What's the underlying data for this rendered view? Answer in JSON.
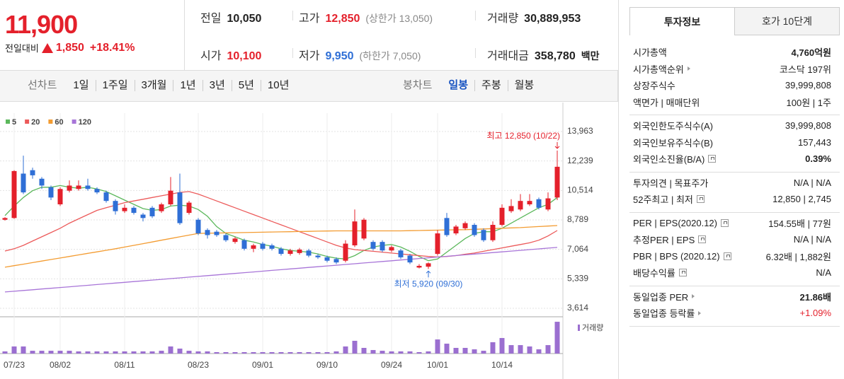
{
  "quote": {
    "price": "11,900",
    "change_label": "전일대비",
    "change": "1,850",
    "change_rate": "+18.41%",
    "stats": [
      {
        "label": "전일",
        "value": "10,050"
      },
      {
        "label": "고가",
        "value": "12,850",
        "note": "(상한가 13,050)"
      },
      {
        "label": "거래량",
        "value": "30,889,953"
      },
      {
        "label": "시가",
        "value": "10,100"
      },
      {
        "label": "저가",
        "value": "9,950",
        "note": "(하한가 7,050)"
      },
      {
        "label": "거래대금",
        "value": "358,780",
        "unit": "백만"
      }
    ]
  },
  "nav": {
    "line_chart": {
      "label": "선차트",
      "periods": [
        "1일",
        "1주일",
        "3개월",
        "1년",
        "3년",
        "5년",
        "10년"
      ]
    },
    "candle_chart": {
      "label": "봉차트",
      "periods": [
        "일봉",
        "주봉",
        "월봉"
      ]
    }
  },
  "info": {
    "tabs": [
      "투자정보",
      "호가 10단계"
    ],
    "groups": [
      [
        {
          "label": "시가총액",
          "value": "4,760억원",
          "bold": true
        },
        {
          "label": "시가총액순위",
          "value": "코스닥 197위",
          "link": true
        },
        {
          "label": "상장주식수",
          "value": "39,999,808"
        },
        {
          "label": "액면가 | 매매단위",
          "value": "100원 | 1주"
        }
      ],
      [
        {
          "label": "외국인한도주식수(A)",
          "value": "39,999,808"
        },
        {
          "label": "외국인보유주식수(B)",
          "value": "157,443"
        },
        {
          "label": "외국인소진율(B/A)",
          "value": "0.39%",
          "help": true,
          "bold": true
        }
      ],
      [
        {
          "label": "투자의견 | 목표주가",
          "value": "N/A | N/A"
        },
        {
          "label": "52주최고 | 최저",
          "value": "12,850 | 2,745",
          "help": true
        }
      ],
      [
        {
          "label": "PER | EPS(2020.12)",
          "value": "154.55배 | 77원",
          "help": true
        },
        {
          "label": "추정PER | EPS",
          "value": "N/A | N/A",
          "help": true
        },
        {
          "label": "PBR | BPS (2020.12)",
          "value": "6.32배 | 1,882원",
          "help": true
        },
        {
          "label": "배당수익률",
          "value": "N/A",
          "help": true
        }
      ],
      [
        {
          "label": "동일업종 PER",
          "value": "21.86배",
          "link": true,
          "bold": true
        },
        {
          "label": "동일업종 등락률",
          "value": "+1.09%",
          "link": true,
          "color": "#e4202b"
        }
      ]
    ]
  },
  "chart_data": {
    "type": "candlestick",
    "categories": [
      null,
      "07/23",
      null,
      null,
      null,
      null,
      "08/02",
      null,
      null,
      null,
      null,
      null,
      null,
      "08/11",
      null,
      null,
      null,
      null,
      null,
      null,
      null,
      "08/23",
      null,
      null,
      null,
      null,
      null,
      null,
      "09/01",
      null,
      null,
      null,
      null,
      null,
      null,
      "09/10",
      null,
      null,
      null,
      null,
      null,
      null,
      "09/24",
      null,
      null,
      null,
      null,
      "10/01",
      null,
      null,
      null,
      null,
      null,
      null,
      "10/14",
      null,
      null,
      null,
      null,
      null,
      null
    ],
    "open": [
      8800,
      8900,
      11500,
      11700,
      11200,
      10700,
      9700,
      10500,
      10600,
      10800,
      10600,
      10400,
      9900,
      9300,
      9500,
      9100,
      9500,
      9300,
      9700,
      10400,
      9200,
      8800,
      8200,
      8100,
      7900,
      7500,
      7600,
      7100,
      7400,
      7300,
      7100,
      6800,
      6850,
      7000,
      6700,
      6600,
      6500,
      6400,
      7300,
      7700,
      7500,
      7500,
      7000,
      7000,
      6700,
      6000,
      6050,
      6800,
      8900,
      8000,
      8300,
      8500,
      8200,
      7600,
      8500,
      9300,
      9400,
      9700,
      10000,
      9400,
      10100
    ],
    "high": [
      8950,
      11700,
      12550,
      11850,
      11300,
      10800,
      10700,
      11100,
      11100,
      11200,
      10700,
      10500,
      10000,
      9700,
      9600,
      9200,
      9600,
      9800,
      11300,
      11500,
      9900,
      8900,
      8300,
      8200,
      8000,
      7800,
      7700,
      7400,
      7500,
      7400,
      7200,
      7100,
      7150,
      7100,
      6800,
      6700,
      6600,
      7600,
      9400,
      8900,
      7600,
      7600,
      7300,
      7100,
      6800,
      6200,
      6300,
      8200,
      9200,
      8500,
      8700,
      8600,
      8300,
      8700,
      9700,
      10000,
      10300,
      10300,
      10100,
      10400,
      12850
    ],
    "low": [
      8750,
      8850,
      10300,
      11200,
      10600,
      9950,
      9600,
      10400,
      10500,
      10500,
      10300,
      9800,
      9100,
      9200,
      9100,
      8700,
      8900,
      9200,
      9600,
      8500,
      9100,
      7900,
      7700,
      7800,
      7500,
      7400,
      7000,
      6900,
      7000,
      7000,
      6700,
      6700,
      6750,
      6600,
      6500,
      6300,
      6200,
      6300,
      7200,
      7600,
      7000,
      6900,
      6900,
      6500,
      6200,
      5950,
      5920,
      6700,
      7800,
      7900,
      8200,
      7800,
      7500,
      7500,
      8400,
      9200,
      9300,
      9600,
      9400,
      9300,
      9950
    ],
    "close": [
      8900,
      11650,
      10400,
      11400,
      10800,
      10100,
      10600,
      10800,
      10800,
      10600,
      10400,
      9900,
      9300,
      9500,
      9200,
      8900,
      9000,
      9700,
      10500,
      8600,
      9800,
      8000,
      7900,
      7900,
      7600,
      7700,
      7100,
      7300,
      7100,
      7100,
      6800,
      7000,
      7050,
      6700,
      6600,
      6400,
      6300,
      7400,
      8700,
      8800,
      7100,
      7000,
      7200,
      6600,
      6300,
      6100,
      6250,
      8000,
      7900,
      8400,
      8600,
      7900,
      7600,
      8500,
      9500,
      9600,
      9900,
      9900,
      9500,
      10050,
      11900
    ],
    "up_color": "#e4202b",
    "down_color": "#2f6fd6",
    "series": [
      {
        "name": "5",
        "color": "#5cb85c",
        "values": [
          9040,
          9600,
          10100,
          10500,
          10700,
          10700,
          10800,
          10700,
          10650,
          10700,
          10600,
          10450,
          10200,
          9950,
          9700,
          9450,
          9350,
          9400,
          9600,
          9650,
          9600,
          9400,
          9000,
          8400,
          8000,
          7800,
          7600,
          7500,
          7350,
          7250,
          7100,
          7000,
          6950,
          6900,
          6800,
          6650,
          6550,
          6500,
          6700,
          7000,
          7200,
          7300,
          7350,
          7200,
          6950,
          6650,
          6400,
          6500,
          6900,
          7300,
          7700,
          8000,
          8100,
          8100,
          8300,
          8600,
          8900,
          9200,
          9500,
          9700,
          10100
        ]
      },
      {
        "name": "20",
        "color": "#ec5a5a",
        "values": [
          6970,
          7100,
          7300,
          7550,
          7800,
          8050,
          8300,
          8600,
          8850,
          9100,
          9350,
          9500,
          9650,
          9800,
          9900,
          10000,
          10100,
          10200,
          10300,
          10400,
          10450,
          10300,
          10100,
          9900,
          9700,
          9500,
          9300,
          9100,
          8900,
          8700,
          8500,
          8300,
          8100,
          7900,
          7700,
          7500,
          7300,
          7150,
          7050,
          7000,
          6950,
          6900,
          6850,
          6800,
          6750,
          6700,
          6650,
          6620,
          6650,
          6700,
          6780,
          6850,
          6950,
          7050,
          7150,
          7250,
          7350,
          7450,
          7600,
          7850,
          8170
        ]
      },
      {
        "name": "60",
        "color": "#f39c32",
        "values": [
          6020,
          6110,
          6200,
          6290,
          6380,
          6470,
          6560,
          6650,
          6740,
          6830,
          6920,
          7010,
          7100,
          7200,
          7300,
          7400,
          7500,
          7600,
          7700,
          7800,
          7900,
          8000,
          8010,
          8020,
          8030,
          8040,
          8050,
          8060,
          8070,
          8080,
          8090,
          8100,
          8110,
          8120,
          8130,
          8140,
          8150,
          8150,
          8150,
          8150,
          8150,
          8150,
          8150,
          8150,
          8160,
          8170,
          8180,
          8190,
          8200,
          8210,
          8220,
          8240,
          8260,
          8280,
          8300,
          8320,
          8340,
          8370,
          8400,
          8430,
          8460
        ]
      },
      {
        "name": "120",
        "color": "#a875d8",
        "values": [
          4570,
          4614,
          4657,
          4701,
          4744,
          4788,
          4831,
          4875,
          4918,
          4962,
          5005,
          5049,
          5092,
          5136,
          5179,
          5223,
          5266,
          5310,
          5353,
          5397,
          5440,
          5484,
          5527,
          5571,
          5614,
          5658,
          5701,
          5745,
          5788,
          5832,
          5875,
          5919,
          5962,
          6006,
          6049,
          6093,
          6136,
          6180,
          6223,
          6267,
          6310,
          6354,
          6397,
          6441,
          6484,
          6528,
          6571,
          6615,
          6658,
          6702,
          6745,
          6789,
          6832,
          6876,
          6919,
          6963,
          7006,
          7050,
          7093,
          7137,
          7180
        ]
      }
    ],
    "ylim": [
      3160,
      15040
    ],
    "yticks": [
      {
        "value": 13963,
        "label": "13,963"
      },
      {
        "value": 12239,
        "label": "12,239"
      },
      {
        "value": 10514,
        "label": "10,514"
      },
      {
        "value": 8789,
        "label": "8,789"
      },
      {
        "value": 7064,
        "label": "7,064"
      },
      {
        "value": 5339,
        "label": "5,339"
      },
      {
        "value": 3614,
        "label": "3,614"
      }
    ],
    "grid": true,
    "volume": {
      "name": "거래량",
      "color": "#9b6fd0",
      "ylim": [
        0,
        33000000
      ],
      "values": [
        2100000,
        6900000,
        6900000,
        2700000,
        2700000,
        2700000,
        2700000,
        2700000,
        2100000,
        2100000,
        2100000,
        2100000,
        2100000,
        2100000,
        2100000,
        2100000,
        2100000,
        2700000,
        6900000,
        4800000,
        2700000,
        2100000,
        2100000,
        1400000,
        1400000,
        1400000,
        1400000,
        1400000,
        1400000,
        1400000,
        1400000,
        1400000,
        1400000,
        1400000,
        1400000,
        1400000,
        2100000,
        6900000,
        12400000,
        5500000,
        3400000,
        2700000,
        2100000,
        2100000,
        2100000,
        1400000,
        2100000,
        13700000,
        9600000,
        5500000,
        5500000,
        4100000,
        2700000,
        11000000,
        15100000,
        8200000,
        8200000,
        6900000,
        4100000,
        8200000,
        30889953
      ]
    },
    "annotations": [
      {
        "text": "최고 12,850 (10/22)",
        "color": "#e4202b"
      },
      {
        "text": "최저 5,920 (09/30)",
        "color": "#2f6fd6"
      }
    ]
  }
}
